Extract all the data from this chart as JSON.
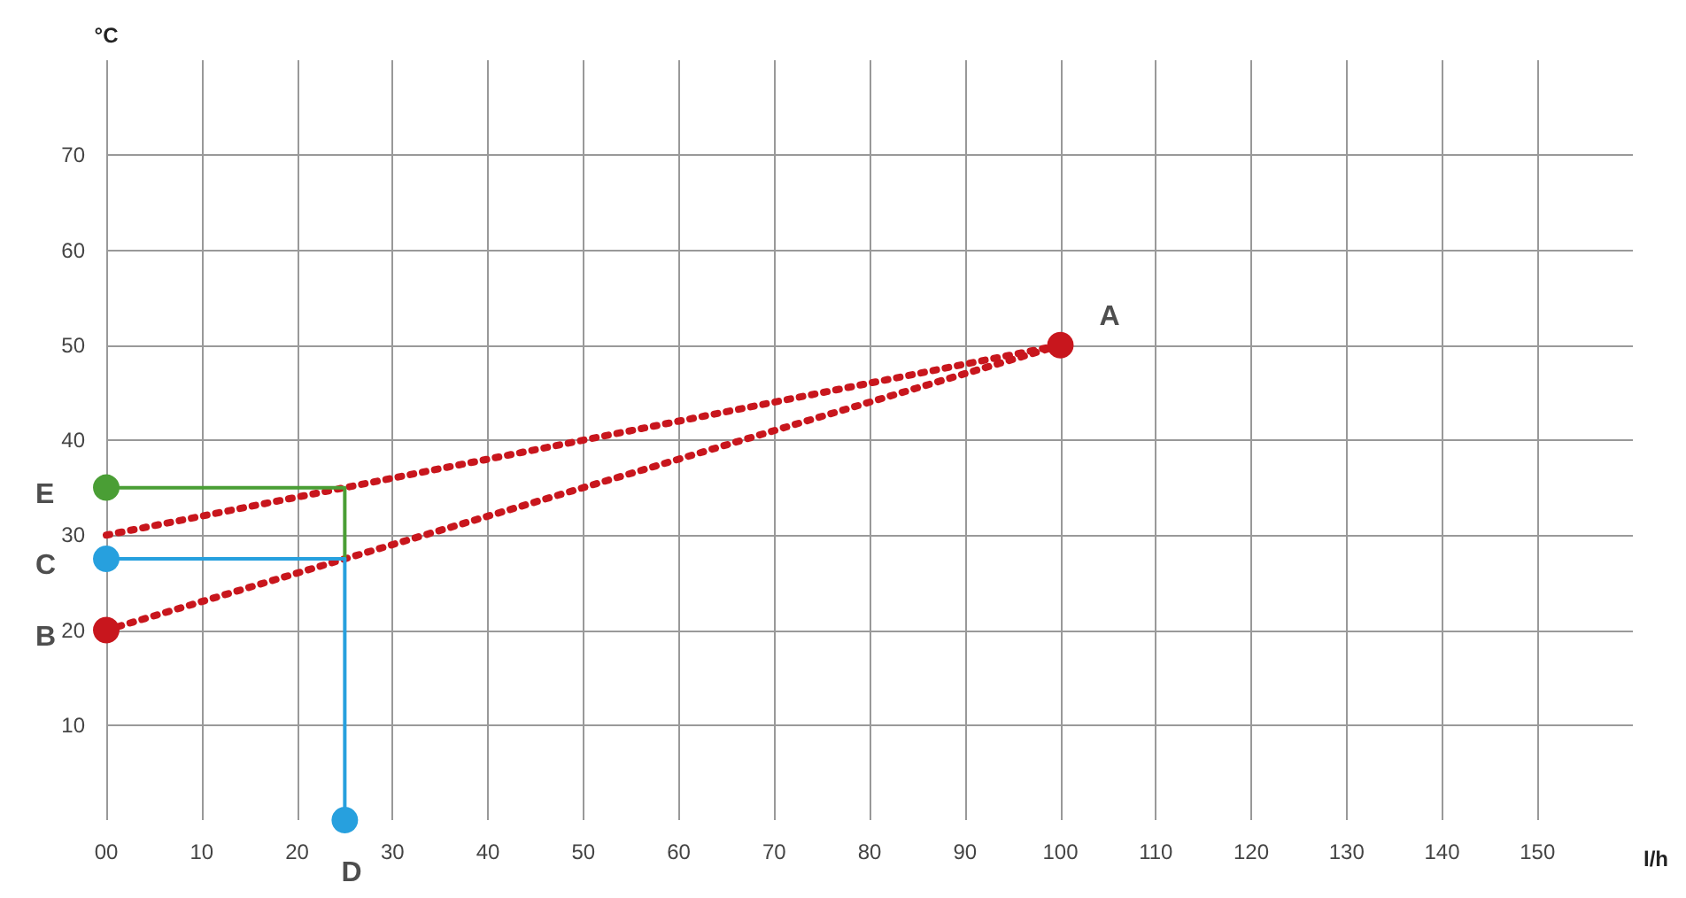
{
  "chart_data": {
    "type": "line",
    "xlabel": "l/h",
    "ylabel": "°C",
    "xlim": [
      0,
      160
    ],
    "xticks": [
      {
        "value": 0,
        "label": "00"
      },
      10,
      20,
      30,
      40,
      50,
      60,
      70,
      80,
      90,
      100,
      110,
      120,
      130,
      140,
      150
    ],
    "ylim": [
      0,
      80
    ],
    "yticks": [
      10,
      20,
      30,
      40,
      50,
      60,
      70
    ],
    "grid": true,
    "series": [
      {
        "color": "#c8161d",
        "x": [
          0,
          100
        ],
        "values": [
          20,
          50
        ],
        "line_style": "dotted",
        "marker": "none"
      },
      {
        "color": "#c8161d",
        "x": [
          0,
          100
        ],
        "values": [
          30,
          50
        ],
        "line_style": "dotted",
        "marker": "none"
      },
      {
        "color": "#4a9e35",
        "x": [
          0,
          25,
          25
        ],
        "values": [
          35,
          35,
          27.5
        ],
        "line_style": "solid",
        "marker": "none"
      },
      {
        "color": "#27a0de",
        "x": [
          0,
          25,
          25
        ],
        "values": [
          27.5,
          27.5,
          0
        ],
        "line_style": "solid",
        "marker": "none"
      },
      {
        "type": "scatter",
        "color": "#c8161d",
        "x": [
          100,
          0
        ],
        "values": [
          50,
          20
        ],
        "marker": "circle"
      },
      {
        "type": "scatter",
        "color": "#4a9e35",
        "x": [
          0
        ],
        "values": [
          35
        ],
        "marker": "circle"
      },
      {
        "type": "scatter",
        "color": "#27a0de",
        "x": [
          0,
          25
        ],
        "values": [
          27.5,
          0
        ],
        "marker": "circle"
      }
    ],
    "annotations": [
      {
        "text": "A",
        "x": 100,
        "y": 50
      },
      {
        "text": "B",
        "x": 0,
        "y": 20
      },
      {
        "text": "C",
        "x": 0,
        "y": 27.5
      },
      {
        "text": "D",
        "x": 25,
        "y": 0
      },
      {
        "text": "E",
        "x": 0,
        "y": 35
      }
    ]
  }
}
